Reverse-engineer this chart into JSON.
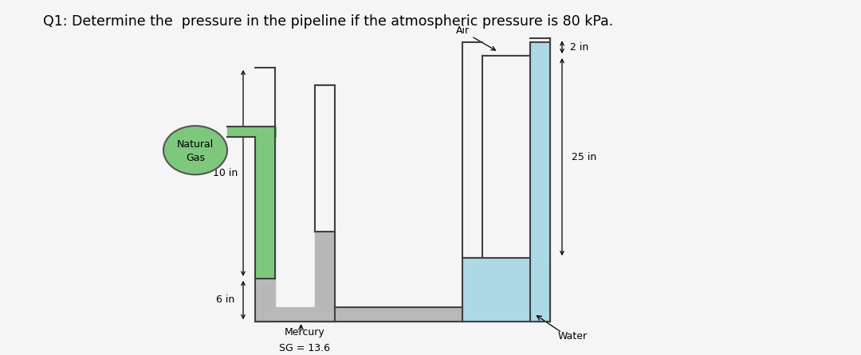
{
  "title": "Q1: Determine the  pressure in the pipeline if the atmospheric pressure is 80 kPa.",
  "title_fontsize": 12.5,
  "fig_color": "#f5f5f5",
  "green_color": "#7dc87d",
  "mercury_color": "#b8b8b8",
  "water_color": "#add8e6",
  "line_color": "#404040",
  "line_width": 1.5,
  "labels": {
    "air": "Air",
    "natural_gas_1": "Natural",
    "natural_gas_2": "Gas",
    "dim_10": "10 in",
    "dim_6": "6 in",
    "dim_2": "2 in",
    "dim_25": "25 in",
    "mercury": "Mercury",
    "sg": "SG = 13.6",
    "water": "Water"
  }
}
